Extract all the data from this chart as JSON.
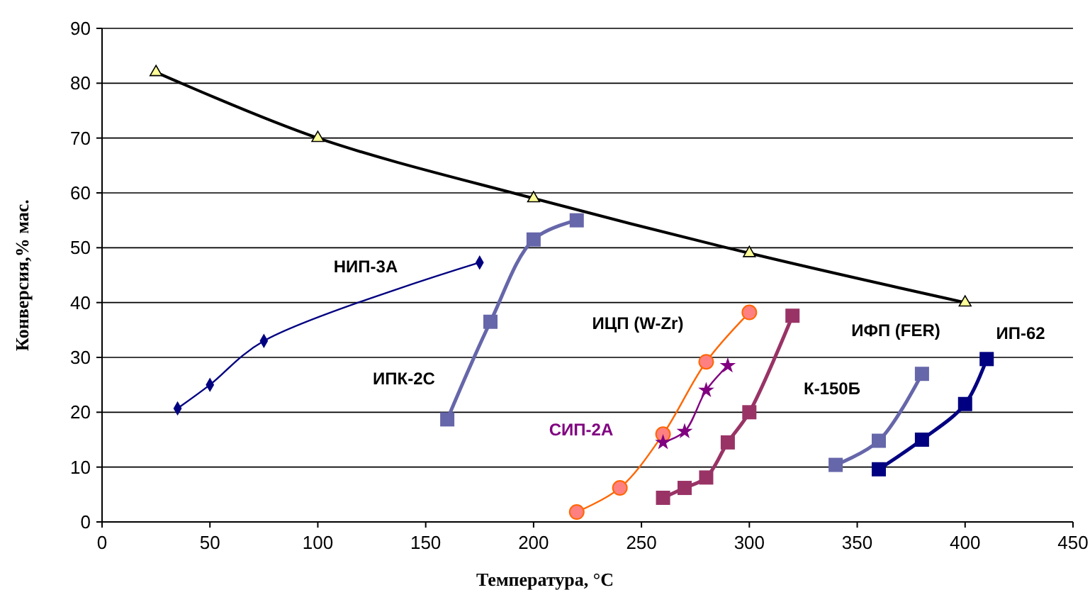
{
  "chart_data": {
    "type": "line",
    "xlabel": "Температура, °C",
    "ylabel": "Конверсия,% мас.",
    "xlim": [
      0,
      450
    ],
    "xticks": [
      0,
      50,
      100,
      150,
      200,
      250,
      300,
      350,
      400,
      450
    ],
    "ylim": [
      0,
      90
    ],
    "yticks": [
      0,
      10,
      20,
      30,
      40,
      50,
      60,
      70,
      80,
      90
    ],
    "grid": "y",
    "series": [
      {
        "color": "#000000",
        "marker": "triangle",
        "x": [
          25,
          100,
          200,
          300,
          400
        ],
        "values": [
          82,
          70,
          59,
          49,
          40
        ]
      },
      {
        "name": "НИП-3А",
        "color": "#000080",
        "marker": "diamond",
        "x": [
          35,
          50,
          75,
          175
        ],
        "values": [
          20.7,
          25,
          33,
          47.3
        ]
      },
      {
        "name": "ИПК-2С",
        "color": "#6666aa",
        "marker": "square",
        "x": [
          160,
          180,
          200,
          220
        ],
        "values": [
          18.7,
          36.5,
          51.5,
          55
        ]
      },
      {
        "name": "ИЦП (W-Zr)",
        "color": "#ff6600",
        "marker": "circle",
        "x": [
          220,
          240,
          260,
          280,
          300
        ],
        "values": [
          1.8,
          6.2,
          16,
          29.2,
          38.2
        ]
      },
      {
        "name": "СИП-2А",
        "color": "#800080",
        "marker": "star",
        "x": [
          260,
          270,
          280,
          290
        ],
        "values": [
          14.5,
          16.5,
          24,
          28.5
        ]
      },
      {
        "name": "К-150Б",
        "color": "#993366",
        "marker": "square",
        "x": [
          260,
          270,
          280,
          290,
          300,
          320
        ],
        "values": [
          4.4,
          6.2,
          8.1,
          14.5,
          20,
          37.6
        ]
      },
      {
        "name": "ИФП (FER)",
        "color": "#6666aa",
        "marker": "square",
        "x": [
          340,
          360,
          380
        ],
        "values": [
          10.4,
          14.8,
          27
        ]
      },
      {
        "name": "ИП-62",
        "color": "#000080",
        "marker": "square",
        "x": [
          360,
          380,
          400,
          410
        ],
        "values": [
          9.6,
          15,
          21.5,
          29.7
        ]
      }
    ]
  }
}
